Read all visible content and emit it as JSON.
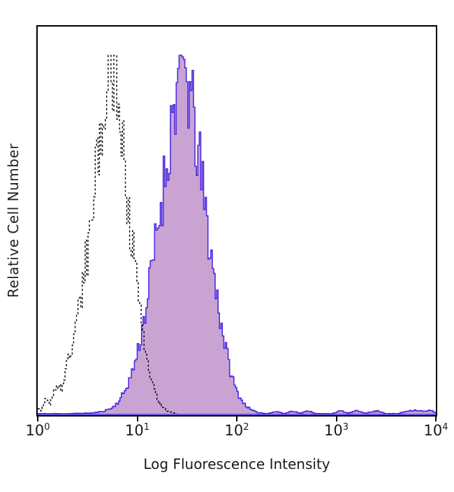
{
  "page": {
    "background": "#ffffff"
  },
  "chart_data": {
    "type": "area",
    "chart_kind": "flow-cytometry-histogram",
    "title": "",
    "xlabel": "Log Fluorescence Intensity",
    "ylabel": "Relative Cell Number",
    "x_scale": "log10",
    "x_range_log": [
      0,
      4
    ],
    "x_tick_labels": [
      {
        "base": "10",
        "exp": "0"
      },
      {
        "base": "10",
        "exp": "1"
      },
      {
        "base": "10",
        "exp": "2"
      },
      {
        "base": "10",
        "exp": "3"
      },
      {
        "base": "10",
        "exp": "4"
      }
    ],
    "y_axis_ticks": "none",
    "grid": false,
    "legend": "none",
    "noise": {
      "seed": 11,
      "amplitude": 0.15
    },
    "series": [
      {
        "name": "stained-sample",
        "style": "filled-outline",
        "fill": "#c9a4d3",
        "stroke": "#4e2ae0",
        "peak_log_x": 1.46,
        "points": [
          [
            0.0,
            0.004
          ],
          [
            0.3,
            0.004
          ],
          [
            0.55,
            0.006
          ],
          [
            0.65,
            0.01
          ],
          [
            0.75,
            0.02
          ],
          [
            0.82,
            0.04
          ],
          [
            0.88,
            0.07
          ],
          [
            0.94,
            0.11
          ],
          [
            1.0,
            0.17
          ],
          [
            1.05,
            0.24
          ],
          [
            1.1,
            0.32
          ],
          [
            1.15,
            0.41
          ],
          [
            1.2,
            0.51
          ],
          [
            1.25,
            0.61
          ],
          [
            1.3,
            0.71
          ],
          [
            1.34,
            0.8
          ],
          [
            1.38,
            0.88
          ],
          [
            1.42,
            0.94
          ],
          [
            1.46,
            0.97
          ],
          [
            1.5,
            0.93
          ],
          [
            1.54,
            0.87
          ],
          [
            1.58,
            0.79
          ],
          [
            1.63,
            0.69
          ],
          [
            1.68,
            0.58
          ],
          [
            1.73,
            0.47
          ],
          [
            1.78,
            0.37
          ],
          [
            1.83,
            0.28
          ],
          [
            1.88,
            0.2
          ],
          [
            1.93,
            0.13
          ],
          [
            1.98,
            0.08
          ],
          [
            2.03,
            0.05
          ],
          [
            2.08,
            0.03
          ],
          [
            2.14,
            0.015
          ],
          [
            2.2,
            0.008
          ],
          [
            2.3,
            0.004
          ],
          [
            2.4,
            0.01
          ],
          [
            2.48,
            0.004
          ],
          [
            2.56,
            0.012
          ],
          [
            2.64,
            0.005
          ],
          [
            2.72,
            0.012
          ],
          [
            2.8,
            0.004
          ],
          [
            2.95,
            0.004
          ],
          [
            3.05,
            0.012
          ],
          [
            3.12,
            0.005
          ],
          [
            3.2,
            0.012
          ],
          [
            3.3,
            0.006
          ],
          [
            3.42,
            0.012
          ],
          [
            3.5,
            0.004
          ],
          [
            3.62,
            0.004
          ],
          [
            3.72,
            0.012
          ],
          [
            3.8,
            0.014
          ],
          [
            3.88,
            0.01
          ],
          [
            3.95,
            0.013
          ],
          [
            4.0,
            0.008
          ]
        ]
      },
      {
        "name": "unstained-control",
        "style": "dashed-outline",
        "fill": "none",
        "stroke": "#000000",
        "peak_log_x": 0.74,
        "points": [
          [
            0.0,
            0.02
          ],
          [
            0.04,
            0.01
          ],
          [
            0.08,
            0.05
          ],
          [
            0.12,
            0.03
          ],
          [
            0.16,
            0.06
          ],
          [
            0.2,
            0.09
          ],
          [
            0.24,
            0.07
          ],
          [
            0.28,
            0.12
          ],
          [
            0.32,
            0.16
          ],
          [
            0.36,
            0.22
          ],
          [
            0.4,
            0.28
          ],
          [
            0.44,
            0.34
          ],
          [
            0.48,
            0.42
          ],
          [
            0.52,
            0.5
          ],
          [
            0.56,
            0.6
          ],
          [
            0.6,
            0.7
          ],
          [
            0.64,
            0.8
          ],
          [
            0.68,
            0.9
          ],
          [
            0.71,
            0.97
          ],
          [
            0.74,
            1.0
          ],
          [
            0.77,
            0.96
          ],
          [
            0.8,
            0.9
          ],
          [
            0.83,
            0.82
          ],
          [
            0.86,
            0.74
          ],
          [
            0.89,
            0.66
          ],
          [
            0.92,
            0.57
          ],
          [
            0.95,
            0.48
          ],
          [
            0.98,
            0.4
          ],
          [
            1.01,
            0.32
          ],
          [
            1.05,
            0.24
          ],
          [
            1.09,
            0.17
          ],
          [
            1.13,
            0.11
          ],
          [
            1.17,
            0.07
          ],
          [
            1.21,
            0.04
          ],
          [
            1.26,
            0.02
          ],
          [
            1.32,
            0.01
          ],
          [
            1.4,
            0.004
          ]
        ]
      }
    ]
  }
}
